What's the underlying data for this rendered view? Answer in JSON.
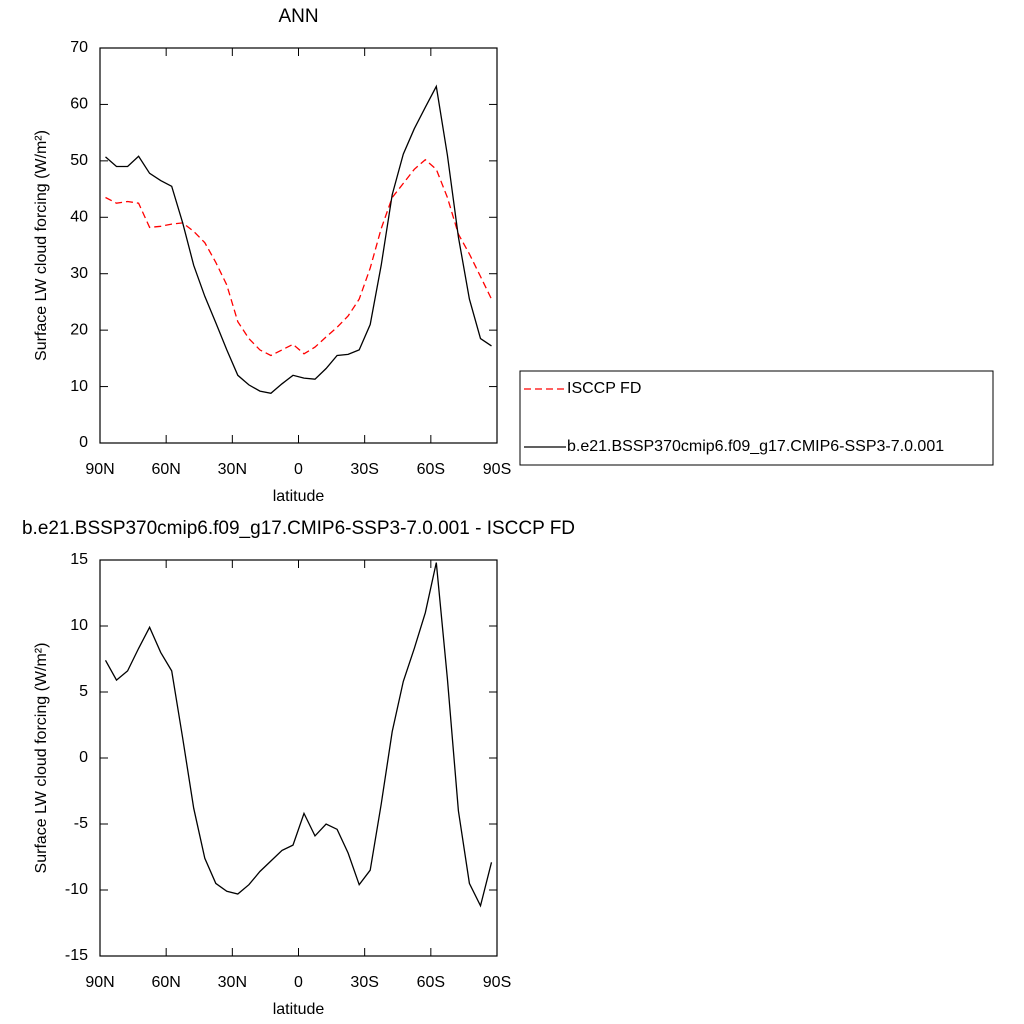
{
  "chart_data": [
    {
      "type": "line",
      "title": "ANN",
      "xlabel": "latitude",
      "ylabel": "Surface LW cloud forcing (W/m²)",
      "x": [
        87.5,
        82.5,
        77.5,
        72.5,
        67.5,
        62.5,
        57.5,
        52.5,
        47.5,
        42.5,
        37.5,
        32.5,
        27.5,
        22.5,
        17.5,
        12.5,
        7.5,
        2.5,
        -2.5,
        -7.5,
        -12.5,
        -17.5,
        -22.5,
        -27.5,
        -32.5,
        -37.5,
        -42.5,
        -47.5,
        -52.5,
        -57.5,
        -62.5,
        -67.5,
        -72.5,
        -77.5,
        -82.5,
        -87.5
      ],
      "series": [
        {
          "name": "ISCCP FD",
          "color": "#ff0000",
          "dashed": true,
          "values": [
            43.5,
            42.5,
            42.8,
            42.5,
            38.2,
            38.4,
            38.8,
            39,
            37.5,
            35.5,
            32,
            28,
            21.5,
            18.5,
            16.5,
            15.5,
            16.5,
            17.5,
            15.8,
            17,
            18.8,
            20.5,
            22.5,
            25.5,
            31,
            38,
            43.5,
            46,
            48.5,
            50.2,
            48.5,
            43.5,
            37,
            33.5,
            29.5,
            25.5
          ]
        },
        {
          "name": "b.e21.BSSP370cmip6.f09_g17.CMIP6-SSP3-7.0.001",
          "color": "#000000",
          "dashed": false,
          "values": [
            50.7,
            49,
            49,
            50.8,
            47.8,
            46.5,
            45.5,
            39,
            31.5,
            26,
            21.3,
            16.5,
            12,
            10.3,
            9.2,
            8.8,
            10.5,
            12,
            11.5,
            11.3,
            13.2,
            15.5,
            15.7,
            16.5,
            21,
            31.5,
            44,
            51.2,
            55.7,
            59.5,
            63.2,
            51,
            36.5,
            25.5,
            18.5,
            17.2
          ]
        }
      ],
      "xlim": [
        90,
        -90
      ],
      "xticks": [
        {
          "value": 90,
          "label": "90N"
        },
        {
          "value": 60,
          "label": "60N"
        },
        {
          "value": 30,
          "label": "30N"
        },
        0,
        {
          "value": -30,
          "label": "30S"
        },
        {
          "value": -60,
          "label": "60S"
        },
        {
          "value": -90,
          "label": "90S"
        }
      ],
      "ylim": [
        0,
        70
      ],
      "yticks": [
        0,
        10,
        20,
        30,
        40,
        50,
        60,
        70
      ],
      "legend": "right"
    },
    {
      "type": "line",
      "title": "b.e21.BSSP370cmip6.f09_g17.CMIP6-SSP3-7.0.001 - ISCCP FD",
      "xlabel": "latitude",
      "ylabel": "Surface LW cloud forcing (W/m²)",
      "x": [
        87.5,
        82.5,
        77.5,
        72.5,
        67.5,
        62.5,
        57.5,
        52.5,
        47.5,
        42.5,
        37.5,
        32.5,
        27.5,
        22.5,
        17.5,
        12.5,
        7.5,
        2.5,
        -2.5,
        -7.5,
        -12.5,
        -17.5,
        -22.5,
        -27.5,
        -32.5,
        -37.5,
        -42.5,
        -47.5,
        -52.5,
        -57.5,
        -62.5,
        -67.5,
        -72.5,
        -77.5,
        -82.5,
        -87.5
      ],
      "series": [
        {
          "color": "#000000",
          "dashed": false,
          "values": [
            7.4,
            5.9,
            6.6,
            8.3,
            9.9,
            8.0,
            6.6,
            1.5,
            -3.8,
            -7.6,
            -9.5,
            -10.1,
            -10.3,
            -9.6,
            -8.6,
            -7.8,
            -7.0,
            -6.6,
            -4.2,
            -5.9,
            -5.0,
            -5.4,
            -7.2,
            -9.6,
            -8.5,
            -3.5,
            2.0,
            5.8,
            8.3,
            11.0,
            14.8,
            6.0,
            -4.0,
            -9.5,
            -11.2,
            -7.9
          ]
        }
      ],
      "xlim": [
        90,
        -90
      ],
      "xticks": [
        {
          "value": 90,
          "label": "90N"
        },
        {
          "value": 60,
          "label": "60N"
        },
        {
          "value": 30,
          "label": "30N"
        },
        0,
        {
          "value": -30,
          "label": "30S"
        },
        {
          "value": -60,
          "label": "60S"
        },
        {
          "value": -90,
          "label": "90S"
        }
      ],
      "ylim": [
        -15,
        15
      ],
      "yticks": [
        -15,
        -10,
        -5,
        0,
        5,
        10,
        15
      ]
    }
  ]
}
